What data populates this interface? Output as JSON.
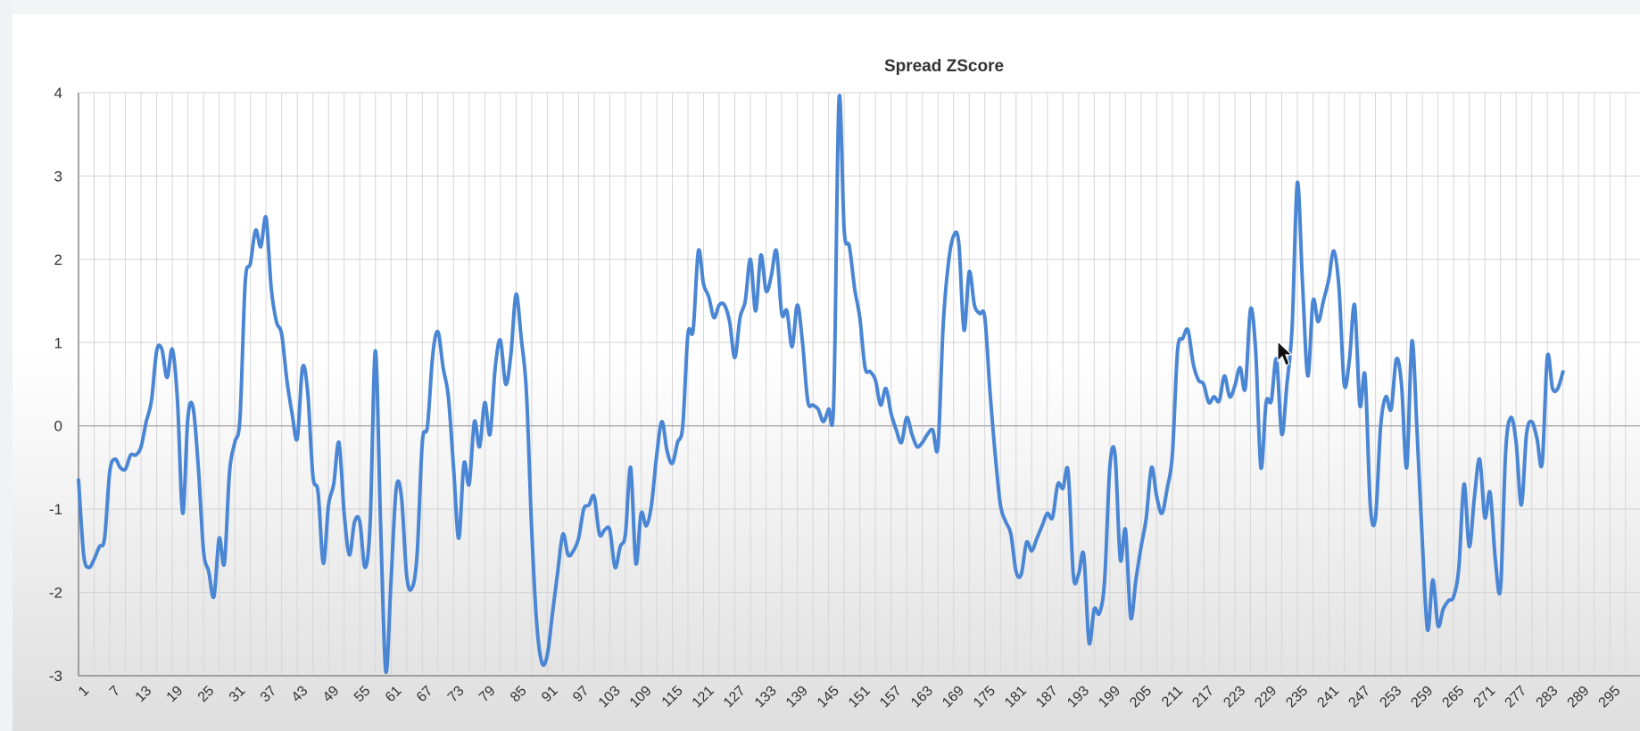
{
  "chart_data": {
    "type": "line",
    "title": "Spread ZScore",
    "xlabel": "",
    "ylabel": "",
    "ylim": [
      -3,
      4
    ],
    "yticks": [
      4,
      3,
      2,
      1,
      0,
      -1,
      -2,
      -3
    ],
    "xlim": [
      1,
      300
    ],
    "xticks": [
      1,
      7,
      13,
      19,
      25,
      31,
      37,
      43,
      49,
      55,
      61,
      67,
      73,
      79,
      85,
      91,
      97,
      103,
      109,
      115,
      121,
      127,
      133,
      139,
      145,
      151,
      157,
      163,
      169,
      175,
      181,
      187,
      193,
      199,
      205,
      211,
      217,
      223,
      229,
      235,
      241,
      247,
      253,
      259,
      265,
      271,
      277,
      283,
      289,
      295
    ],
    "grid": true,
    "line_color": "#4a86d4",
    "series": [
      {
        "points": [
          [
            1,
            -0.65
          ],
          [
            2,
            -1.55
          ],
          [
            3,
            -1.7
          ],
          [
            4,
            -1.6
          ],
          [
            5,
            -1.45
          ],
          [
            6,
            -1.35
          ],
          [
            7,
            -0.55
          ],
          [
            8,
            -0.4
          ],
          [
            9,
            -0.5
          ],
          [
            10,
            -0.52
          ],
          [
            11,
            -0.35
          ],
          [
            12,
            -0.35
          ],
          [
            13,
            -0.25
          ],
          [
            14,
            0.05
          ],
          [
            15,
            0.3
          ],
          [
            16,
            0.9
          ],
          [
            17,
            0.92
          ],
          [
            18,
            0.58
          ],
          [
            19,
            0.92
          ],
          [
            20,
            0.3
          ],
          [
            21,
            -1.05
          ],
          [
            22,
            0.1
          ],
          [
            23,
            0.22
          ],
          [
            24,
            -0.5
          ],
          [
            25,
            -1.5
          ],
          [
            26,
            -1.75
          ],
          [
            27,
            -2.05
          ],
          [
            28,
            -1.35
          ],
          [
            29,
            -1.65
          ],
          [
            30,
            -0.55
          ],
          [
            31,
            -0.2
          ],
          [
            32,
            0.1
          ],
          [
            33,
            1.72
          ],
          [
            34,
            1.95
          ],
          [
            35,
            2.35
          ],
          [
            36,
            2.15
          ],
          [
            37,
            2.5
          ],
          [
            38,
            1.65
          ],
          [
            39,
            1.25
          ],
          [
            40,
            1.1
          ],
          [
            41,
            0.55
          ],
          [
            42,
            0.15
          ],
          [
            43,
            -0.15
          ],
          [
            44,
            0.7
          ],
          [
            45,
            0.4
          ],
          [
            46,
            -0.6
          ],
          [
            47,
            -0.8
          ],
          [
            48,
            -1.65
          ],
          [
            49,
            -0.95
          ],
          [
            50,
            -0.7
          ],
          [
            51,
            -0.2
          ],
          [
            52,
            -1.05
          ],
          [
            53,
            -1.55
          ],
          [
            54,
            -1.15
          ],
          [
            55,
            -1.15
          ],
          [
            56,
            -1.7
          ],
          [
            57,
            -1.15
          ],
          [
            58,
            0.9
          ],
          [
            59,
            -1.2
          ],
          [
            60,
            -2.95
          ],
          [
            61,
            -1.85
          ],
          [
            62,
            -0.75
          ],
          [
            63,
            -0.85
          ],
          [
            64,
            -1.8
          ],
          [
            65,
            -1.95
          ],
          [
            66,
            -1.55
          ],
          [
            67,
            -0.2
          ],
          [
            68,
            0.0
          ],
          [
            69,
            0.85
          ],
          [
            70,
            1.13
          ],
          [
            71,
            0.7
          ],
          [
            72,
            0.35
          ],
          [
            73,
            -0.5
          ],
          [
            74,
            -1.35
          ],
          [
            75,
            -0.45
          ],
          [
            76,
            -0.7
          ],
          [
            77,
            0.05
          ],
          [
            78,
            -0.25
          ],
          [
            79,
            0.28
          ],
          [
            80,
            -0.1
          ],
          [
            81,
            0.7
          ],
          [
            82,
            1.03
          ],
          [
            83,
            0.5
          ],
          [
            84,
            0.85
          ],
          [
            85,
            1.58
          ],
          [
            86,
            1.05
          ],
          [
            87,
            0.4
          ],
          [
            88,
            -1.25
          ],
          [
            89,
            -2.4
          ],
          [
            90,
            -2.85
          ],
          [
            91,
            -2.75
          ],
          [
            92,
            -2.25
          ],
          [
            93,
            -1.75
          ],
          [
            94,
            -1.3
          ],
          [
            95,
            -1.55
          ],
          [
            96,
            -1.5
          ],
          [
            97,
            -1.35
          ],
          [
            98,
            -1.0
          ],
          [
            99,
            -0.95
          ],
          [
            100,
            -0.85
          ],
          [
            101,
            -1.3
          ],
          [
            102,
            -1.25
          ],
          [
            103,
            -1.25
          ],
          [
            104,
            -1.7
          ],
          [
            105,
            -1.45
          ],
          [
            106,
            -1.3
          ],
          [
            107,
            -0.5
          ],
          [
            108,
            -1.65
          ],
          [
            109,
            -1.05
          ],
          [
            110,
            -1.2
          ],
          [
            111,
            -0.95
          ],
          [
            112,
            -0.35
          ],
          [
            113,
            0.05
          ],
          [
            114,
            -0.3
          ],
          [
            115,
            -0.45
          ],
          [
            116,
            -0.2
          ],
          [
            117,
            0.0
          ],
          [
            118,
            1.1
          ],
          [
            119,
            1.15
          ],
          [
            120,
            2.1
          ],
          [
            121,
            1.7
          ],
          [
            122,
            1.55
          ],
          [
            123,
            1.3
          ],
          [
            124,
            1.45
          ],
          [
            125,
            1.45
          ],
          [
            126,
            1.25
          ],
          [
            127,
            0.82
          ],
          [
            128,
            1.3
          ],
          [
            129,
            1.5
          ],
          [
            130,
            2.0
          ],
          [
            131,
            1.38
          ],
          [
            132,
            2.05
          ],
          [
            133,
            1.62
          ],
          [
            134,
            1.8
          ],
          [
            135,
            2.1
          ],
          [
            136,
            1.35
          ],
          [
            137,
            1.38
          ],
          [
            138,
            0.95
          ],
          [
            139,
            1.45
          ],
          [
            140,
            1.0
          ],
          [
            141,
            0.3
          ],
          [
            142,
            0.25
          ],
          [
            143,
            0.2
          ],
          [
            144,
            0.05
          ],
          [
            145,
            0.2
          ],
          [
            146,
            0.3
          ],
          [
            147,
            3.92
          ],
          [
            148,
            2.35
          ],
          [
            149,
            2.15
          ],
          [
            150,
            1.65
          ],
          [
            151,
            1.3
          ],
          [
            152,
            0.7
          ],
          [
            153,
            0.65
          ],
          [
            154,
            0.55
          ],
          [
            155,
            0.25
          ],
          [
            156,
            0.45
          ],
          [
            157,
            0.15
          ],
          [
            158,
            -0.05
          ],
          [
            159,
            -0.2
          ],
          [
            160,
            0.1
          ],
          [
            161,
            -0.1
          ],
          [
            162,
            -0.25
          ],
          [
            163,
            -0.2
          ],
          [
            164,
            -0.1
          ],
          [
            165,
            -0.05
          ],
          [
            166,
            -0.25
          ],
          [
            167,
            1.2
          ],
          [
            168,
            1.95
          ],
          [
            169,
            2.28
          ],
          [
            170,
            2.2
          ],
          [
            171,
            1.15
          ],
          [
            172,
            1.85
          ],
          [
            173,
            1.45
          ],
          [
            174,
            1.35
          ],
          [
            175,
            1.3
          ],
          [
            176,
            0.4
          ],
          [
            177,
            -0.35
          ],
          [
            178,
            -0.95
          ],
          [
            179,
            -1.15
          ],
          [
            180,
            -1.3
          ],
          [
            181,
            -1.75
          ],
          [
            182,
            -1.78
          ],
          [
            183,
            -1.4
          ],
          [
            184,
            -1.5
          ],
          [
            185,
            -1.35
          ],
          [
            186,
            -1.2
          ],
          [
            187,
            -1.05
          ],
          [
            188,
            -1.1
          ],
          [
            189,
            -0.7
          ],
          [
            190,
            -0.75
          ],
          [
            191,
            -0.55
          ],
          [
            192,
            -1.8
          ],
          [
            193,
            -1.78
          ],
          [
            194,
            -1.55
          ],
          [
            195,
            -2.6
          ],
          [
            196,
            -2.2
          ],
          [
            197,
            -2.25
          ],
          [
            198,
            -1.85
          ],
          [
            199,
            -0.5
          ],
          [
            200,
            -0.35
          ],
          [
            201,
            -1.6
          ],
          [
            202,
            -1.25
          ],
          [
            203,
            -2.3
          ],
          [
            204,
            -1.85
          ],
          [
            205,
            -1.45
          ],
          [
            206,
            -1.1
          ],
          [
            207,
            -0.5
          ],
          [
            208,
            -0.85
          ],
          [
            209,
            -1.05
          ],
          [
            210,
            -0.75
          ],
          [
            211,
            -0.35
          ],
          [
            212,
            0.9
          ],
          [
            213,
            1.05
          ],
          [
            214,
            1.15
          ],
          [
            215,
            0.75
          ],
          [
            216,
            0.55
          ],
          [
            217,
            0.5
          ],
          [
            218,
            0.28
          ],
          [
            219,
            0.35
          ],
          [
            220,
            0.3
          ],
          [
            221,
            0.6
          ],
          [
            222,
            0.35
          ],
          [
            223,
            0.48
          ],
          [
            224,
            0.7
          ],
          [
            225,
            0.45
          ],
          [
            226,
            1.4
          ],
          [
            227,
            0.9
          ],
          [
            228,
            -0.5
          ],
          [
            229,
            0.28
          ],
          [
            230,
            0.3
          ],
          [
            231,
            0.8
          ],
          [
            232,
            -0.1
          ],
          [
            233,
            0.5
          ],
          [
            234,
            1.2
          ],
          [
            235,
            2.92
          ],
          [
            236,
            1.7
          ],
          [
            237,
            0.6
          ],
          [
            238,
            1.5
          ],
          [
            239,
            1.25
          ],
          [
            240,
            1.5
          ],
          [
            241,
            1.75
          ],
          [
            242,
            2.1
          ],
          [
            243,
            1.65
          ],
          [
            244,
            0.5
          ],
          [
            245,
            0.8
          ],
          [
            246,
            1.45
          ],
          [
            247,
            0.25
          ],
          [
            248,
            0.6
          ],
          [
            249,
            -0.95
          ],
          [
            250,
            -1.1
          ],
          [
            251,
            0.0
          ],
          [
            252,
            0.35
          ],
          [
            253,
            0.2
          ],
          [
            254,
            0.8
          ],
          [
            255,
            0.5
          ],
          [
            256,
            -0.5
          ],
          [
            257,
            1.02
          ],
          [
            258,
            -0.1
          ],
          [
            259,
            -1.4
          ],
          [
            260,
            -2.45
          ],
          [
            261,
            -1.85
          ],
          [
            262,
            -2.4
          ],
          [
            263,
            -2.2
          ],
          [
            264,
            -2.1
          ],
          [
            265,
            -2.05
          ],
          [
            266,
            -1.7
          ],
          [
            267,
            -0.7
          ],
          [
            268,
            -1.45
          ],
          [
            269,
            -0.85
          ],
          [
            270,
            -0.4
          ],
          [
            271,
            -1.1
          ],
          [
            272,
            -0.8
          ],
          [
            273,
            -1.6
          ],
          [
            274,
            -1.95
          ],
          [
            275,
            -0.3
          ],
          [
            276,
            0.1
          ],
          [
            277,
            -0.2
          ],
          [
            278,
            -0.95
          ],
          [
            279,
            -0.1
          ],
          [
            280,
            0.05
          ],
          [
            281,
            -0.15
          ],
          [
            282,
            -0.45
          ],
          [
            283,
            0.83
          ],
          [
            284,
            0.45
          ],
          [
            285,
            0.45
          ],
          [
            286,
            0.65
          ]
        ]
      }
    ]
  }
}
